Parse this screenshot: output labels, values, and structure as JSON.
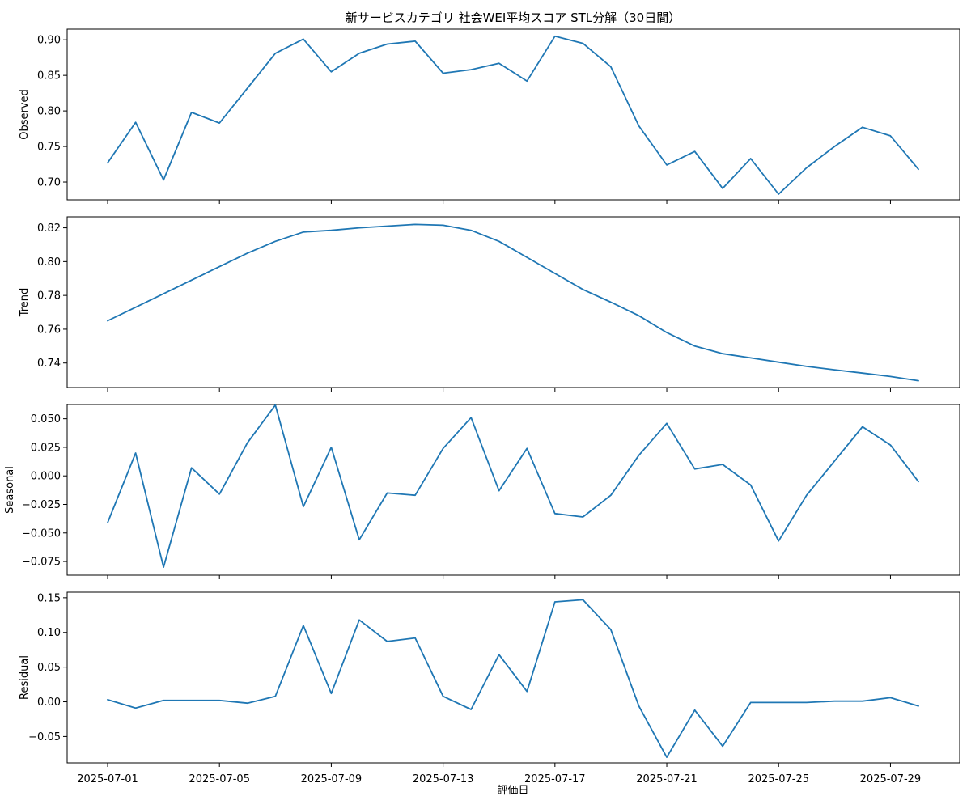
{
  "chart_data": {
    "type": "line",
    "title": "新サービスカテゴリ 社会WEI平均スコア STL分解（30日間）",
    "xlabel": "評価日",
    "line_color": "#1f77b4",
    "x": [
      "2025-07-01",
      "2025-07-02",
      "2025-07-03",
      "2025-07-04",
      "2025-07-05",
      "2025-07-06",
      "2025-07-07",
      "2025-07-08",
      "2025-07-09",
      "2025-07-10",
      "2025-07-11",
      "2025-07-12",
      "2025-07-13",
      "2025-07-14",
      "2025-07-15",
      "2025-07-16",
      "2025-07-17",
      "2025-07-18",
      "2025-07-19",
      "2025-07-20",
      "2025-07-21",
      "2025-07-22",
      "2025-07-23",
      "2025-07-24",
      "2025-07-25",
      "2025-07-26",
      "2025-07-27",
      "2025-07-28",
      "2025-07-29",
      "2025-07-30"
    ],
    "x_ticks": [
      "2025-07-01",
      "2025-07-05",
      "2025-07-09",
      "2025-07-13",
      "2025-07-17",
      "2025-07-21",
      "2025-07-25",
      "2025-07-29"
    ],
    "panels": [
      {
        "ylabel": "Observed",
        "ylim": [
          0.675,
          0.915
        ],
        "yticks": [
          0.7,
          0.75,
          0.8,
          0.85,
          0.9
        ],
        "tick_labels": [
          "0.70",
          "0.75",
          "0.80",
          "0.85",
          "0.90"
        ],
        "values": [
          0.727,
          0.784,
          0.703,
          0.798,
          0.783,
          0.832,
          0.881,
          0.901,
          0.855,
          0.881,
          0.894,
          0.898,
          0.853,
          0.858,
          0.867,
          0.842,
          0.905,
          0.895,
          0.862,
          0.779,
          0.724,
          0.743,
          0.691,
          0.733,
          0.683,
          0.72,
          0.75,
          0.777,
          0.765,
          0.718
        ]
      },
      {
        "ylabel": "Trend",
        "ylim": [
          0.7255,
          0.8265
        ],
        "yticks": [
          0.74,
          0.76,
          0.78,
          0.8,
          0.82
        ],
        "tick_labels": [
          "0.74",
          "0.76",
          "0.78",
          "0.80",
          "0.82"
        ],
        "values": [
          0.765,
          0.773,
          0.781,
          0.789,
          0.797,
          0.805,
          0.812,
          0.8175,
          0.8185,
          0.82,
          0.821,
          0.822,
          0.8215,
          0.8185,
          0.812,
          0.8025,
          0.793,
          0.7835,
          0.776,
          0.768,
          0.758,
          0.75,
          0.7455,
          0.743,
          0.7405,
          0.738,
          0.736,
          0.734,
          0.732,
          0.7295
        ]
      },
      {
        "ylabel": "Seasonal",
        "ylim": [
          -0.087,
          0.0625
        ],
        "yticks": [
          -0.075,
          -0.05,
          -0.025,
          0.0,
          0.025,
          0.05
        ],
        "tick_labels": [
          "−0.075",
          "−0.050",
          "−0.025",
          "0.000",
          "0.025",
          "0.050"
        ],
        "values": [
          -0.041,
          0.02,
          -0.08,
          0.007,
          -0.016,
          0.029,
          0.062,
          -0.027,
          0.025,
          -0.056,
          -0.015,
          -0.017,
          0.024,
          0.051,
          -0.013,
          0.024,
          -0.033,
          -0.036,
          -0.017,
          0.018,
          0.046,
          0.006,
          0.01,
          -0.008,
          -0.057,
          -0.017,
          0.013,
          0.043,
          0.027,
          -0.005
        ]
      },
      {
        "ylabel": "Residual",
        "ylim": [
          -0.088,
          0.158
        ],
        "yticks": [
          -0.05,
          0.0,
          0.05,
          0.1,
          0.15
        ],
        "tick_labels": [
          "−0.05",
          "0.00",
          "0.05",
          "0.10",
          "0.15"
        ],
        "values": [
          0.003,
          -0.009,
          0.002,
          0.002,
          0.002,
          -0.002,
          0.008,
          0.11,
          0.012,
          0.118,
          0.087,
          0.092,
          0.008,
          -0.011,
          0.068,
          0.015,
          0.144,
          0.147,
          0.104,
          -0.006,
          -0.08,
          -0.012,
          -0.064,
          -0.001,
          -0.001,
          -0.001,
          0.001,
          0.001,
          0.006,
          -0.006
        ]
      }
    ]
  }
}
